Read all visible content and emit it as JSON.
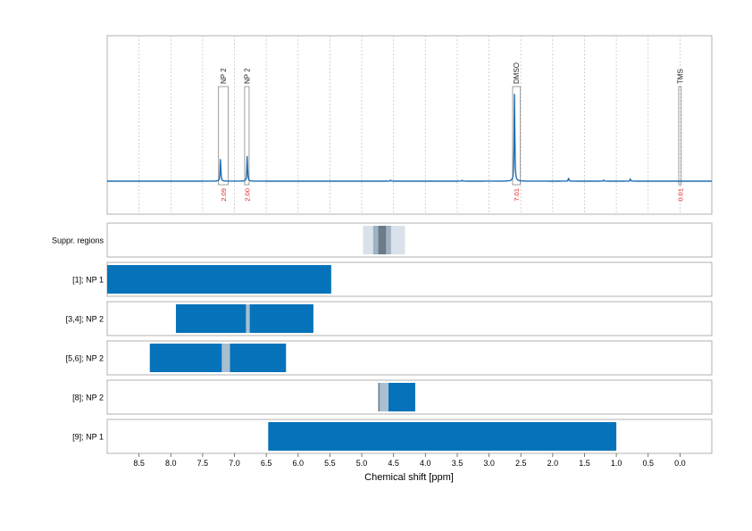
{
  "chart_data": {
    "type": "line",
    "xlabel": "Chemical shift [ppm]",
    "xlim": [
      9.0,
      -0.5
    ],
    "x_reversed": true,
    "xticks": [
      "8.5",
      "8.0",
      "7.5",
      "7.0",
      "6.5",
      "6.0",
      "5.5",
      "5.0",
      "4.5",
      "4.0",
      "3.5",
      "3.0",
      "2.5",
      "2.0",
      "1.5",
      "1.0",
      "0.5",
      "0.0"
    ],
    "grid": true,
    "spectrum": {
      "baseline_intensity": 0.0,
      "peaks": [
        {
          "x": 7.22,
          "height": 0.31
        },
        {
          "x": 6.8,
          "height": 0.33
        },
        {
          "x": 2.6,
          "height": 1.12
        },
        {
          "x": 1.75,
          "height": 0.04
        },
        {
          "x": 0.78,
          "height": 0.03
        },
        {
          "x": 4.55,
          "height": 0.012
        },
        {
          "x": 3.42,
          "height": 0.012
        },
        {
          "x": 1.2,
          "height": 0.015
        }
      ]
    },
    "annotations": [
      {
        "label": "NP 2",
        "x_from": 7.25,
        "x_to": 7.1,
        "integral": "2.09"
      },
      {
        "label": "NP 2",
        "x_from": 6.84,
        "x_to": 6.77,
        "integral": "2.00"
      },
      {
        "label": "DMSO",
        "x_from": 2.63,
        "x_to": 2.51,
        "integral": "7.01"
      },
      {
        "label": "TMS",
        "x_from": 0.02,
        "x_to": -0.02,
        "integral": "0.01"
      }
    ],
    "tracks": [
      {
        "label": "Suppr. regions",
        "bars": [
          {
            "from": 4.98,
            "to": 4.32,
            "type": "light"
          },
          {
            "from": 4.82,
            "to": 4.54,
            "type": "mid"
          },
          {
            "from": 4.74,
            "to": 4.62,
            "type": "dark"
          }
        ]
      },
      {
        "label": "[1]; NP 1",
        "bars": [
          {
            "from": 9.0,
            "to": 5.48,
            "type": "range"
          }
        ]
      },
      {
        "label": "[3,4]; NP 2",
        "bars": [
          {
            "from": 7.92,
            "to": 5.76,
            "type": "range"
          },
          {
            "from": 6.82,
            "to": 6.76,
            "type": "gap"
          }
        ]
      },
      {
        "label": "[5,6]; NP 2",
        "bars": [
          {
            "from": 8.33,
            "to": 6.19,
            "type": "range"
          },
          {
            "from": 7.2,
            "to": 7.07,
            "type": "gap"
          }
        ]
      },
      {
        "label": "[8]; NP 2",
        "bars": [
          {
            "from": 4.74,
            "to": 4.16,
            "type": "range"
          },
          {
            "from": 4.73,
            "to": 4.58,
            "type": "gap"
          },
          {
            "from": 4.74,
            "to": 4.72,
            "type": "dark"
          }
        ]
      },
      {
        "label": "[9]; NP 1",
        "bars": [
          {
            "from": 6.47,
            "to": 1.0,
            "type": "range"
          }
        ]
      }
    ]
  },
  "colors": {
    "spectrum": "#1f6fb2",
    "range": "#0672ba",
    "gap": "#a8bfd2",
    "light": "#d9e2ea",
    "mid": "#9fb2c3",
    "dark": "#6b7b88",
    "integral": "#e0241e",
    "frame": "#b0b0b0",
    "grid": "#c8c8c8"
  }
}
